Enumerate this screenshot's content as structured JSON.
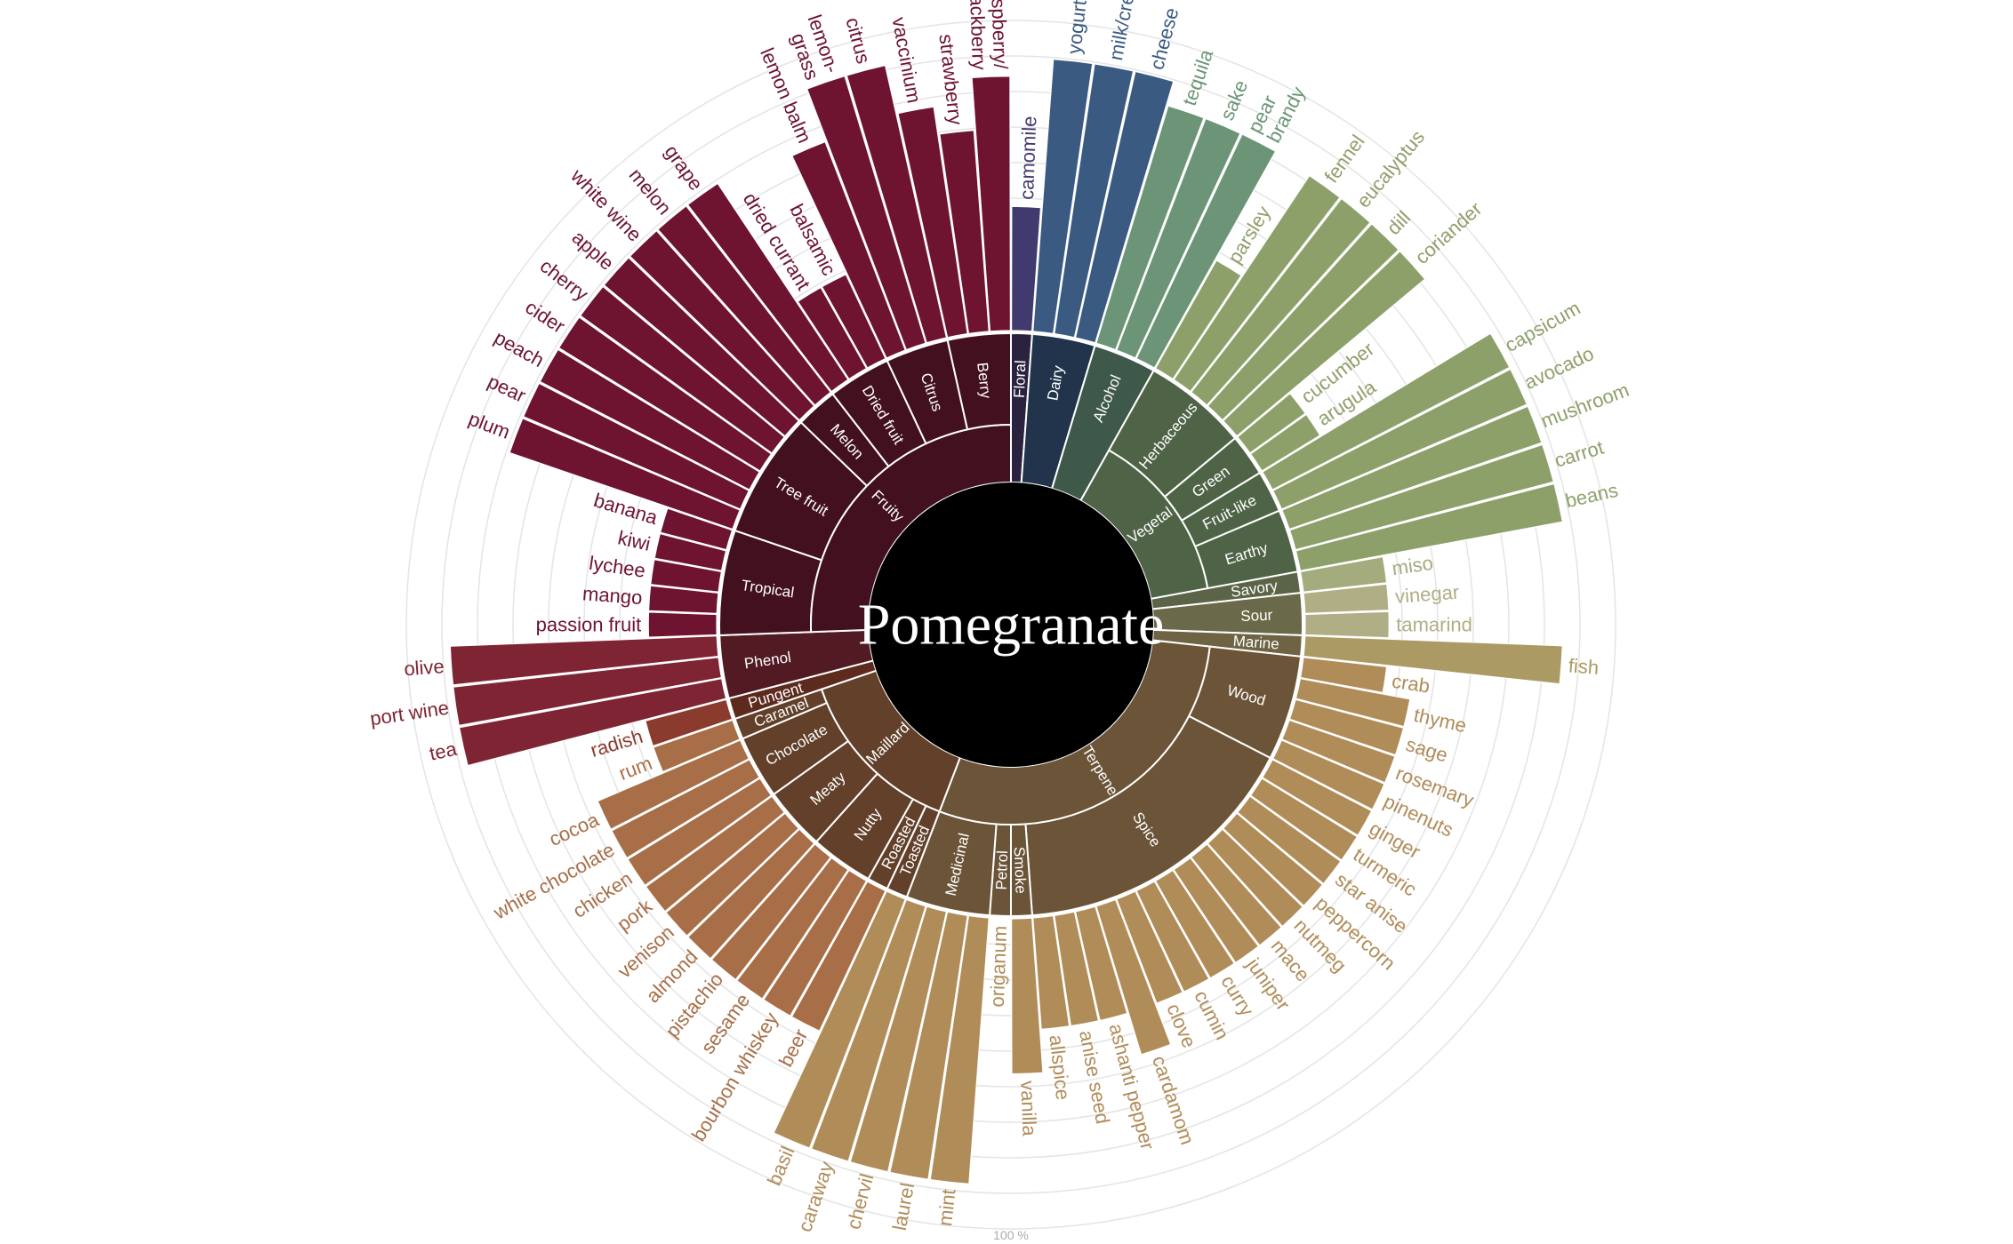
{
  "chart_data": {
    "type": "radial-bar-sunburst",
    "title": "Pomegranate",
    "scale_label": "100 %",
    "groups": [
      {
        "name": "Floral",
        "color": "#2b2240",
        "subs": [
          {
            "name": "",
            "items": [
              {
                "label": "camomile",
                "value": 0.4,
                "color": "#413a6e"
              }
            ]
          }
        ]
      },
      {
        "name": "Dairy",
        "color": "#21344c",
        "subs": [
          {
            "name": "",
            "items": [
              {
                "label": "yogurt",
                "value": 0.88,
                "color": "#3a5a82"
              },
              {
                "label": "milk/cream",
                "value": 0.88,
                "color": "#3a5a82"
              },
              {
                "label": "cheese",
                "value": 0.88,
                "color": "#3a5a82"
              }
            ]
          }
        ]
      },
      {
        "name": "Alcohol",
        "color": "#3e584a",
        "subs": [
          {
            "name": "",
            "items": [
              {
                "label": "tequila",
                "value": 0.8,
                "color": "#6b9576"
              },
              {
                "label": "sake",
                "value": 0.8,
                "color": "#6b9576"
              },
              {
                "label": "pear\nbrandy",
                "value": 0.8,
                "color": "#6b9576"
              }
            ]
          }
        ]
      },
      {
        "name": "Vegetal",
        "color": "#4f6446",
        "subs": [
          {
            "name": "Herbaceous",
            "items": [
              {
                "label": "parsley",
                "value": 0.4,
                "color": "#8ea06a"
              },
              {
                "label": "fennel",
                "value": 0.79,
                "color": "#8ea06a"
              },
              {
                "label": "eucalyptus",
                "value": 0.79,
                "color": "#8ea06a"
              },
              {
                "label": "dill",
                "value": 0.79,
                "color": "#8ea06a"
              },
              {
                "label": "coriander",
                "value": 0.79,
                "color": "#8ea06a"
              }
            ]
          },
          {
            "name": "Green",
            "items": [
              {
                "label": "cucumber",
                "value": 0.22,
                "color": "#8ea06a"
              },
              {
                "label": "arugula",
                "value": 0.22,
                "color": "#8ea06a"
              }
            ]
          },
          {
            "name": "Fruit-like",
            "items": [
              {
                "label": "capsicum",
                "value": 0.86,
                "color": "#8ea06a"
              },
              {
                "label": "avocado",
                "value": 0.86,
                "color": "#8ea06a"
              }
            ]
          },
          {
            "name": "Earthy",
            "items": [
              {
                "label": "mushroom",
                "value": 0.86,
                "color": "#8ea06a"
              },
              {
                "label": "carrot",
                "value": 0.86,
                "color": "#8ea06a"
              },
              {
                "label": "beans",
                "value": 0.86,
                "color": "#8ea06a"
              }
            ]
          }
        ]
      },
      {
        "name": "Savory",
        "color": "#5c6447",
        "subs": [
          {
            "name": "",
            "items": [
              {
                "label": "miso",
                "value": 0.27,
                "color": "#a4ab7c"
              }
            ]
          }
        ]
      },
      {
        "name": "Sour",
        "color": "#6a6a4a",
        "subs": [
          {
            "name": "",
            "items": [
              {
                "label": "vinegar",
                "value": 0.27,
                "color": "#b0ae84"
              },
              {
                "label": "tamarind",
                "value": 0.27,
                "color": "#b0ae84"
              }
            ]
          }
        ]
      },
      {
        "name": "Marine",
        "color": "#6e6444",
        "subs": [
          {
            "name": "",
            "items": [
              {
                "label": "fish",
                "value": 0.83,
                "color": "#ab9a64"
              }
            ]
          }
        ]
      },
      {
        "name": "Terpene",
        "color": "#6b5437",
        "subs": [
          {
            "name": "Wood",
            "items": [
              {
                "label": "crab",
                "value": 0.27,
                "color": "#b08c58"
              },
              {
                "label": "thyme",
                "value": 0.36,
                "color": "#b08c58"
              },
              {
                "label": "sage",
                "value": 0.36,
                "color": "#b08c58"
              },
              {
                "label": "rosemary",
                "value": 0.36,
                "color": "#b08c58"
              },
              {
                "label": "pinenuts",
                "value": 0.36,
                "color": "#b08c58"
              }
            ]
          },
          {
            "name": "Spice",
            "items": [
              {
                "label": "ginger",
                "value": 0.36,
                "color": "#b08c58"
              },
              {
                "label": "turmeric",
                "value": 0.36,
                "color": "#b08c58"
              },
              {
                "label": "star anise",
                "value": 0.36,
                "color": "#b08c58"
              },
              {
                "label": "peppercorn",
                "value": 0.36,
                "color": "#b08c58"
              },
              {
                "label": "nutmeg",
                "value": 0.36,
                "color": "#b08c58"
              },
              {
                "label": "mace",
                "value": 0.36,
                "color": "#b08c58"
              },
              {
                "label": "juniper",
                "value": 0.36,
                "color": "#b08c58"
              },
              {
                "label": "curry",
                "value": 0.36,
                "color": "#b08c58"
              },
              {
                "label": "cumin",
                "value": 0.36,
                "color": "#b08c58"
              },
              {
                "label": "clove",
                "value": 0.36,
                "color": "#b08c58"
              },
              {
                "label": "cardamom",
                "value": 0.5,
                "color": "#b08c58"
              },
              {
                "label": "ashanti pepper",
                "value": 0.36,
                "color": "#b08c58"
              },
              {
                "label": "anise seed",
                "value": 0.36,
                "color": "#b08c58"
              },
              {
                "label": "allspice",
                "value": 0.36,
                "color": "#b08c58"
              }
            ]
          },
          {
            "name": "Smoke",
            "items": [
              {
                "label": "vanilla",
                "value": 0.5,
                "color": "#b08c58"
              }
            ]
          },
          {
            "name": "Petrol",
            "items": [
              {
                "label": "origanum",
                "value": 0.0,
                "color": "#b08c58"
              }
            ]
          },
          {
            "name": "Medicinal",
            "items": [
              {
                "label": "mint",
                "value": 0.86,
                "color": "#b08c58"
              },
              {
                "label": "laurel",
                "value": 0.86,
                "color": "#b08c58"
              },
              {
                "label": "chervil",
                "value": 0.86,
                "color": "#b08c58"
              },
              {
                "label": "caraway",
                "value": 0.86,
                "color": "#b08c58"
              }
            ]
          }
        ]
      },
      {
        "name": "Maillard",
        "color": "#62402a",
        "subs": [
          {
            "name": "Toasted",
            "items": [
              {
                "label": "basil",
                "value": 0.86,
                "color": "#b08c58"
              }
            ]
          },
          {
            "name": "Roasted",
            "items": [
              {
                "label": "beer",
                "value": 0.5,
                "color": "#a76e47"
              }
            ]
          },
          {
            "name": "Nutty",
            "items": [
              {
                "label": "bourbon whiskey",
                "value": 0.5,
                "color": "#a76e47"
              },
              {
                "label": "sesame",
                "value": 0.5,
                "color": "#a76e47"
              },
              {
                "label": "pistachio",
                "value": 0.5,
                "color": "#a76e47"
              }
            ]
          },
          {
            "name": "Meaty",
            "items": [
              {
                "label": "almond",
                "value": 0.5,
                "color": "#a76e47"
              },
              {
                "label": "venison",
                "value": 0.5,
                "color": "#a76e47"
              },
              {
                "label": "pork",
                "value": 0.5,
                "color": "#a76e47"
              }
            ]
          },
          {
            "name": "Chocolate",
            "items": [
              {
                "label": "chicken",
                "value": 0.5,
                "color": "#a76e47"
              },
              {
                "label": "white chocolate",
                "value": 0.5,
                "color": "#a76e47"
              },
              {
                "label": "cocoa",
                "value": 0.5,
                "color": "#a76e47"
              }
            ]
          },
          {
            "name": "Caramel",
            "items": [
              {
                "label": "rum",
                "value": 0.27,
                "color": "#a76e47"
              }
            ]
          }
        ]
      },
      {
        "name": "Pungent",
        "color": "#5d2a1e",
        "subs": [
          {
            "name": "",
            "items": [
              {
                "label": "radish",
                "value": 0.27,
                "color": "#8a3b2e"
              }
            ]
          }
        ]
      },
      {
        "name": "Phenol",
        "color": "#521a22",
        "subs": [
          {
            "name": "",
            "items": [
              {
                "label": "tea",
                "value": 0.86,
                "color": "#7e2433"
              },
              {
                "label": "port wine",
                "value": 0.86,
                "color": "#7e2433"
              },
              {
                "label": "olive",
                "value": 0.86,
                "color": "#7e2433"
              }
            ]
          }
        ]
      },
      {
        "name": "Fruity",
        "color": "#42101f",
        "subs": [
          {
            "name": "Tropical",
            "items": [
              {
                "label": "passion fruit",
                "value": 0.22,
                "color": "#6e1330"
              },
              {
                "label": "mango",
                "value": 0.22,
                "color": "#6e1330"
              },
              {
                "label": "lychee",
                "value": 0.22,
                "color": "#6e1330"
              },
              {
                "label": "kiwi",
                "value": 0.22,
                "color": "#6e1330"
              },
              {
                "label": "banana",
                "value": 0.22,
                "color": "#6e1330"
              }
            ]
          },
          {
            "name": "Tree fruit",
            "items": [
              {
                "label": "plum",
                "value": 0.76,
                "color": "#6e1330"
              },
              {
                "label": "pear",
                "value": 0.76,
                "color": "#6e1330"
              },
              {
                "label": "peach",
                "value": 0.76,
                "color": "#6e1330"
              },
              {
                "label": "cider",
                "value": 0.76,
                "color": "#6e1330"
              },
              {
                "label": "cherry",
                "value": 0.76,
                "color": "#6e1330"
              },
              {
                "label": "apple",
                "value": 0.76,
                "color": "#6e1330"
              }
            ]
          },
          {
            "name": "Melon",
            "items": [
              {
                "label": "white wine",
                "value": 0.76,
                "color": "#6e1330"
              },
              {
                "label": "melon",
                "value": 0.76,
                "color": "#6e1330"
              }
            ]
          },
          {
            "name": "Dried fruit",
            "items": [
              {
                "label": "grape",
                "value": 0.76,
                "color": "#6e1330"
              },
              {
                "label": "dried currant",
                "value": 0.3,
                "color": "#6e1330"
              },
              {
                "label": "balsamic",
                "value": 0.3,
                "color": "#6e1330"
              }
            ]
          },
          {
            "name": "Citrus",
            "items": [
              {
                "label": "lemon balm",
                "value": 0.72,
                "color": "#6e1330"
              },
              {
                "label": "lemon-\ngrass",
                "value": 0.9,
                "color": "#6e1330"
              },
              {
                "label": "citrus",
                "value": 0.9,
                "color": "#6e1330"
              }
            ]
          },
          {
            "name": "Berry",
            "items": [
              {
                "label": "vaccinium",
                "value": 0.74,
                "color": "#6e1330"
              },
              {
                "label": "strawberry",
                "value": 0.65,
                "color": "#6e1330"
              },
              {
                "label": "raspberry/\nblackberry",
                "value": 0.82,
                "color": "#6e1330"
              }
            ]
          }
        ]
      }
    ]
  }
}
